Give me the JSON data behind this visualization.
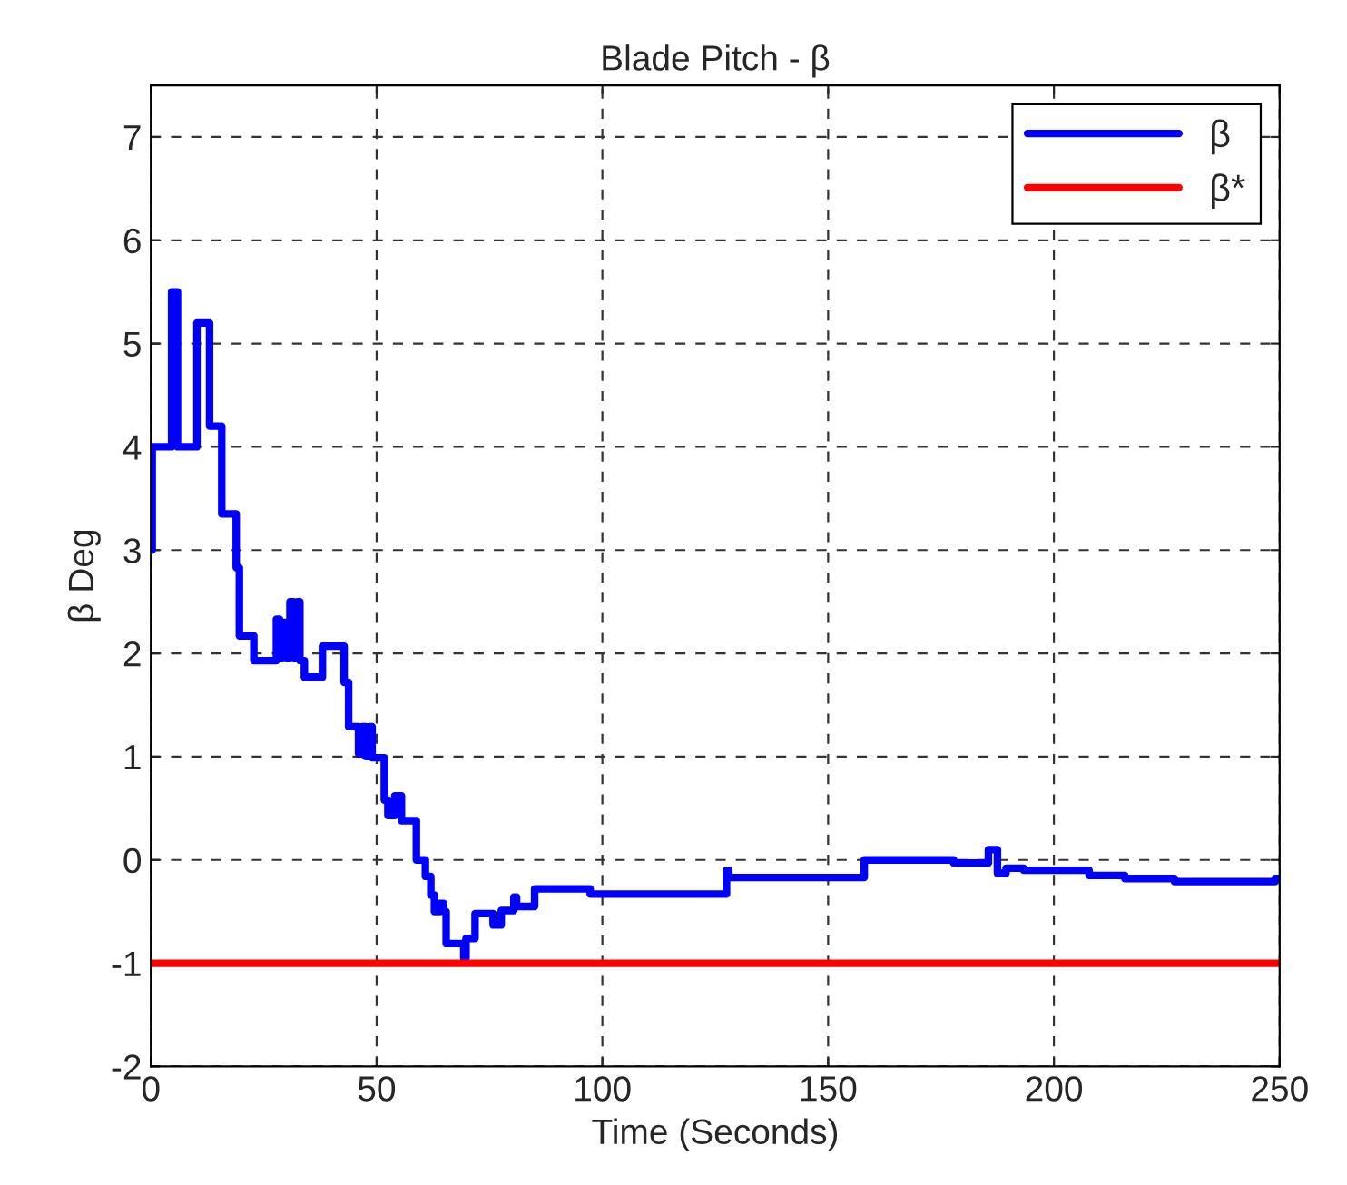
{
  "chart_data": {
    "type": "line",
    "title": "Blade Pitch - β",
    "xlabel": "Time (Seconds)",
    "ylabel": "β Deg",
    "xlim": [
      0,
      250
    ],
    "xticks": [
      0,
      50,
      100,
      150,
      200,
      250
    ],
    "ylim": [
      -2,
      7.5
    ],
    "yticks": [
      -2,
      -1,
      0,
      1,
      2,
      3,
      4,
      5,
      6,
      7
    ],
    "grid": true,
    "legend": "top right",
    "series": [
      {
        "name": "β",
        "type": "step",
        "color": "#0000ff",
        "x": [
          0,
          0.3,
          4.6,
          5.9,
          10.2,
          13,
          15.7,
          18.9,
          19.6,
          22.8,
          27.8,
          28.5,
          29.2,
          30,
          30.8,
          31.6,
          32.5,
          33,
          34,
          38,
          42.8,
          43.8,
          46,
          46.8,
          47.6,
          48.4,
          49,
          51.7,
          52.5,
          54,
          55.5,
          58.8,
          60.8,
          62,
          62.8,
          64,
          64.8,
          65.4,
          69.3,
          69.8,
          71.8,
          75.8,
          77.6,
          80.4,
          81,
          85,
          97.3,
          127.5,
          128,
          158,
          177.8,
          185.5,
          187.5,
          189.4,
          193.3,
          207.8,
          215.7,
          226.7,
          249,
          250
        ],
        "values": [
          3.0,
          4.0,
          5.5,
          4.0,
          5.2,
          4.2,
          3.35,
          2.83,
          2.17,
          1.93,
          2.33,
          1.95,
          2.3,
          1.95,
          2.5,
          1.95,
          2.5,
          1.93,
          1.77,
          2.07,
          1.72,
          1.29,
          1.03,
          1.29,
          1.0,
          1.29,
          0.99,
          0.58,
          0.43,
          0.62,
          0.38,
          0.0,
          -0.16,
          -0.34,
          -0.5,
          -0.42,
          -0.5,
          -0.81,
          -0.95,
          -0.76,
          -0.52,
          -0.63,
          -0.49,
          -0.36,
          -0.45,
          -0.28,
          -0.33,
          -0.1,
          -0.17,
          0.0,
          -0.03,
          0.1,
          -0.13,
          -0.08,
          -0.1,
          -0.15,
          -0.18,
          -0.21,
          -0.18,
          -0.18
        ]
      },
      {
        "name": "β*",
        "color": "#ff0000",
        "x": [
          0,
          250
        ],
        "values": [
          -1,
          -1
        ]
      }
    ]
  }
}
